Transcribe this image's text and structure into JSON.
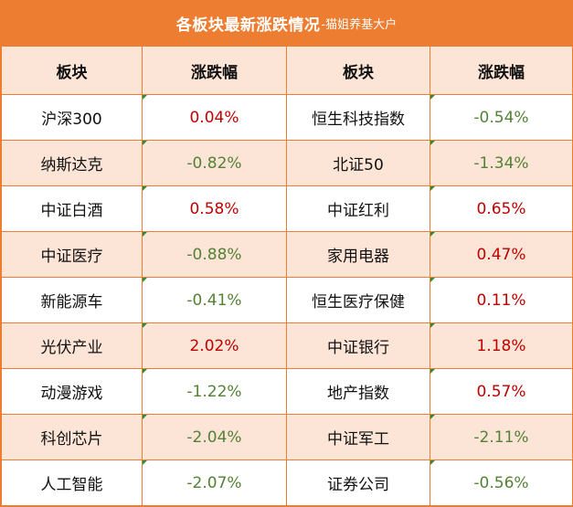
{
  "title": {
    "main": "各板块最新涨跌情况",
    "sub": "-猫姐养基大户"
  },
  "headers": [
    "板块",
    "涨跌幅",
    "板块",
    "涨跌幅"
  ],
  "rows": [
    {
      "left_name": "沪深300",
      "left_change": "0.04%",
      "left_dir": "up",
      "right_name": "恒生科技指数",
      "right_change": "-0.54%",
      "right_dir": "down"
    },
    {
      "left_name": "纳斯达克",
      "left_change": "-0.82%",
      "left_dir": "down",
      "right_name": "北证50",
      "right_change": "-1.34%",
      "right_dir": "down"
    },
    {
      "left_name": "中证白酒",
      "left_change": "0.58%",
      "left_dir": "up",
      "right_name": "中证红利",
      "right_change": "0.65%",
      "right_dir": "up"
    },
    {
      "left_name": "中证医疗",
      "left_change": "-0.88%",
      "left_dir": "down",
      "right_name": "家用电器",
      "right_change": "0.47%",
      "right_dir": "up"
    },
    {
      "left_name": "新能源车",
      "left_change": "-0.41%",
      "left_dir": "down",
      "right_name": "恒生医疗保健",
      "right_change": "0.11%",
      "right_dir": "up"
    },
    {
      "left_name": "光伏产业",
      "left_change": "2.02%",
      "left_dir": "up",
      "right_name": "中证银行",
      "right_change": "1.18%",
      "right_dir": "up"
    },
    {
      "left_name": "动漫游戏",
      "left_change": "-1.22%",
      "left_dir": "down",
      "right_name": "地产指数",
      "right_change": "0.57%",
      "right_dir": "up"
    },
    {
      "left_name": "科创芯片",
      "left_change": "-2.04%",
      "left_dir": "down",
      "right_name": "中证军工",
      "right_change": "-2.11%",
      "right_dir": "down"
    },
    {
      "left_name": "人工智能",
      "left_change": "-2.07%",
      "left_dir": "down",
      "right_name": "证券公司",
      "right_change": "-0.56%",
      "right_dir": "down"
    }
  ],
  "colors": {
    "accent": "#ed7d31",
    "band": "#fce4d6",
    "positive": "#c00000",
    "negative": "#548235"
  }
}
